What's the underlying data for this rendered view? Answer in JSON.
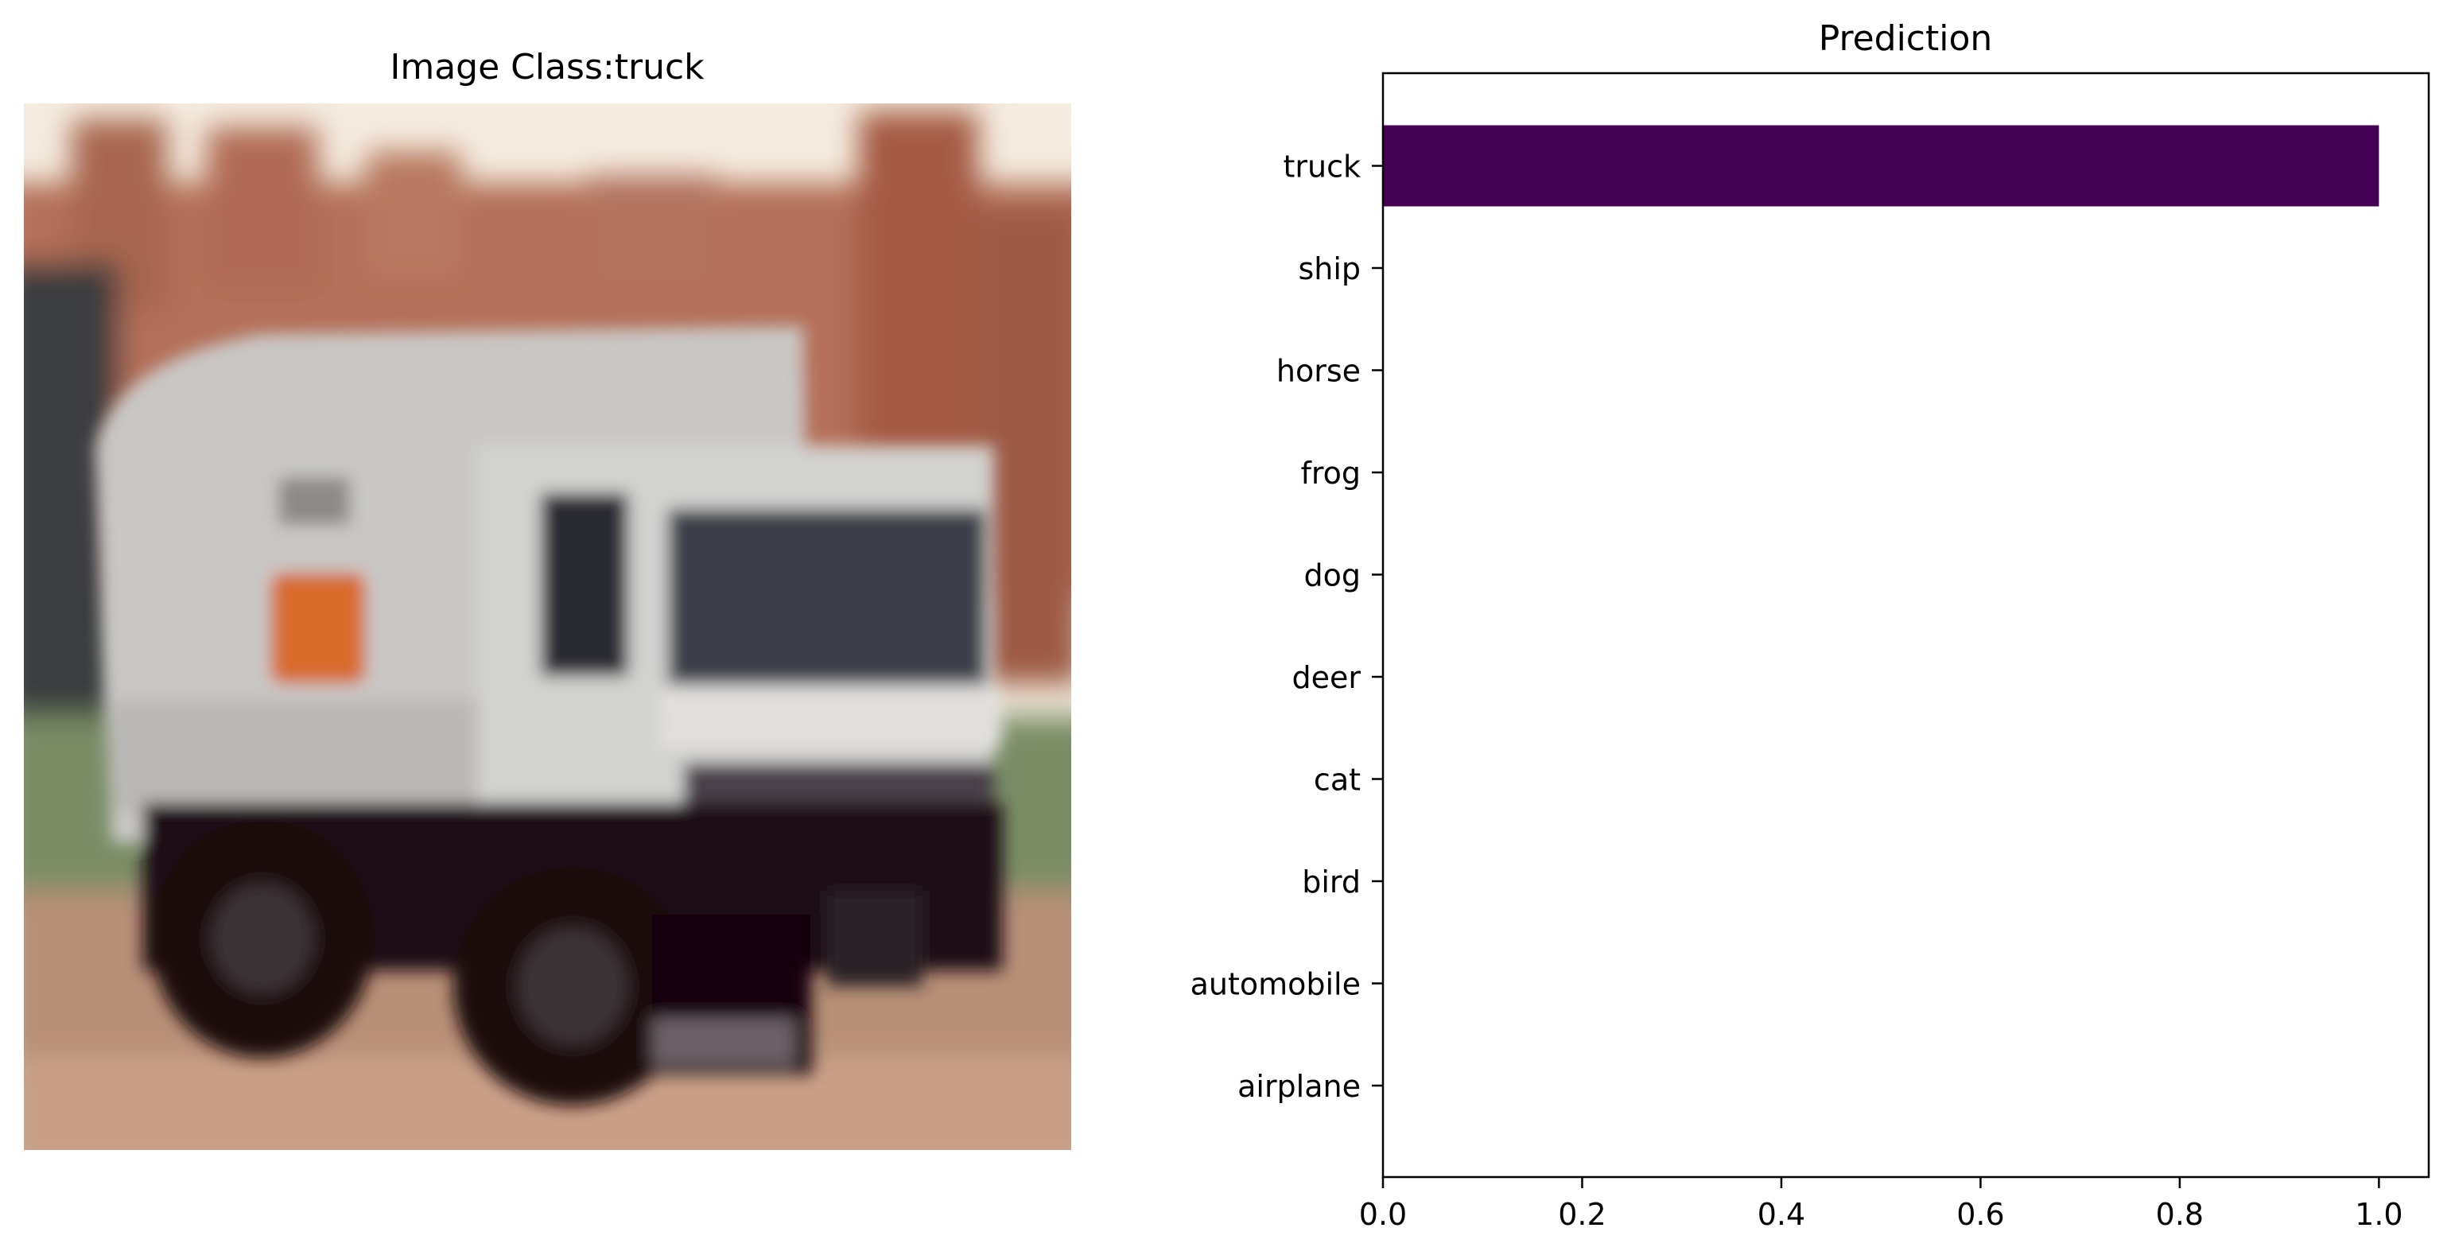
{
  "image_panel": {
    "title": "Image Class:truck",
    "image_icon": "blurred-truck-photo"
  },
  "chart_data": {
    "type": "bar",
    "orientation": "horizontal",
    "title": "Prediction",
    "xlabel": "",
    "ylabel": "",
    "categories": [
      "airplane",
      "automobile",
      "bird",
      "cat",
      "deer",
      "dog",
      "frog",
      "horse",
      "ship",
      "truck"
    ],
    "values": [
      0.0,
      0.0,
      0.0,
      0.0,
      0.0,
      0.0,
      0.0,
      0.0,
      0.0,
      1.0
    ],
    "xlim": [
      0.0,
      1.05
    ],
    "xticks": [
      "0.0",
      "0.2",
      "0.4",
      "0.6",
      "0.8",
      "1.0"
    ],
    "grid": false,
    "bar_color": "#440154"
  }
}
